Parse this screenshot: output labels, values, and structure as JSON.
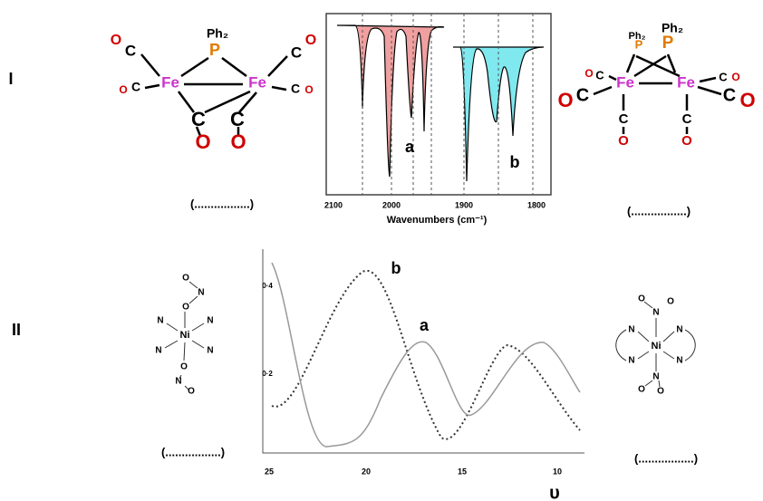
{
  "rows": [
    {
      "label": "I",
      "left_structure": {
        "atoms": [
          "Ph₂",
          "P",
          "Fe",
          "Fe",
          "O",
          "C",
          "O",
          "C",
          "C",
          "O",
          "C",
          "O",
          "C",
          "O",
          "C",
          "O"
        ],
        "blank": "(.................)"
      },
      "spectrum": {
        "xticks": [
          "2100",
          "2000",
          "1900",
          "1800"
        ],
        "xlabel": "Wavenumbers (cm⁻¹)",
        "labels": [
          "a",
          "b"
        ]
      },
      "right_structure": {
        "atoms": [
          "Ph₂",
          "Ph₂",
          "P",
          "P",
          "Fe",
          "Fe",
          "O",
          "C",
          "O",
          "C",
          "C",
          "O",
          "C",
          "O",
          "C",
          "O",
          "C",
          "O"
        ],
        "blank": "(.................)"
      }
    },
    {
      "label": "II",
      "left_structure": {
        "atoms": [
          "O",
          "N",
          "O",
          "N",
          "N",
          "Ni",
          "N",
          "N",
          "O",
          "N",
          "O"
        ],
        "blank": "(.................)"
      },
      "spectrum": {
        "yticks": [
          "0·4",
          "0·2"
        ],
        "xticks": [
          "25",
          "20",
          "15",
          "10"
        ],
        "xlabel": "υ",
        "labels": [
          "b",
          "a"
        ]
      },
      "right_structure": {
        "atoms": [
          "O",
          "N",
          "O",
          "N",
          "N",
          "Ni",
          "N",
          "N",
          "N",
          "O",
          "O"
        ],
        "blank": "(.................)"
      }
    }
  ]
}
